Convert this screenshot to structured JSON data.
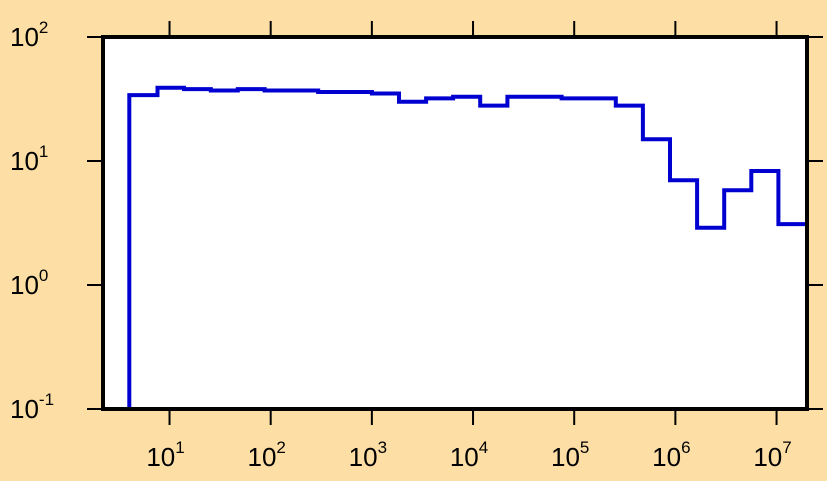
{
  "chart_data": {
    "type": "line",
    "subtype": "step-histogram",
    "title": "",
    "xlabel": "",
    "ylabel": "",
    "x_scale": "log",
    "y_scale": "log",
    "xlim": [
      2.2,
      20000000
    ],
    "ylim": [
      0.1,
      100
    ],
    "grid": false,
    "colors": {
      "background": "#fddfa6",
      "plot_area": "#ffffff",
      "series": "#0000d0",
      "frame": "#000000"
    },
    "x_ticks": [
      {
        "base": "10",
        "exp": "1",
        "value": 10
      },
      {
        "base": "10",
        "exp": "2",
        "value": 100
      },
      {
        "base": "10",
        "exp": "3",
        "value": 1000
      },
      {
        "base": "10",
        "exp": "4",
        "value": 10000
      },
      {
        "base": "10",
        "exp": "5",
        "value": 100000
      },
      {
        "base": "10",
        "exp": "6",
        "value": 1000000
      },
      {
        "base": "10",
        "exp": "7",
        "value": 10000000
      }
    ],
    "y_ticks": [
      {
        "base": "10",
        "exp": "-1",
        "value": 0.1
      },
      {
        "base": "10",
        "exp": "0",
        "value": 1
      },
      {
        "base": "10",
        "exp": "1",
        "value": 10
      },
      {
        "base": "10",
        "exp": "2",
        "value": 100
      }
    ],
    "series": [
      {
        "bin_edges": [
          4.0,
          7.6,
          13.9,
          25.6,
          47.3,
          87.1,
          160.2,
          294.9,
          542.8,
          1000,
          1854,
          3436,
          6349,
          11770,
          21850,
          40480,
          75010,
          139000,
          257600,
          477400,
          884900,
          1640000,
          3039000,
          5632000,
          10440000,
          20000000
        ],
        "values": [
          34,
          39,
          38,
          37,
          38,
          37,
          37,
          36,
          36,
          35,
          30,
          32,
          33,
          28,
          33,
          33,
          32,
          32,
          28,
          15,
          7,
          2.9,
          5.8,
          8.3,
          3.1
        ]
      }
    ]
  }
}
